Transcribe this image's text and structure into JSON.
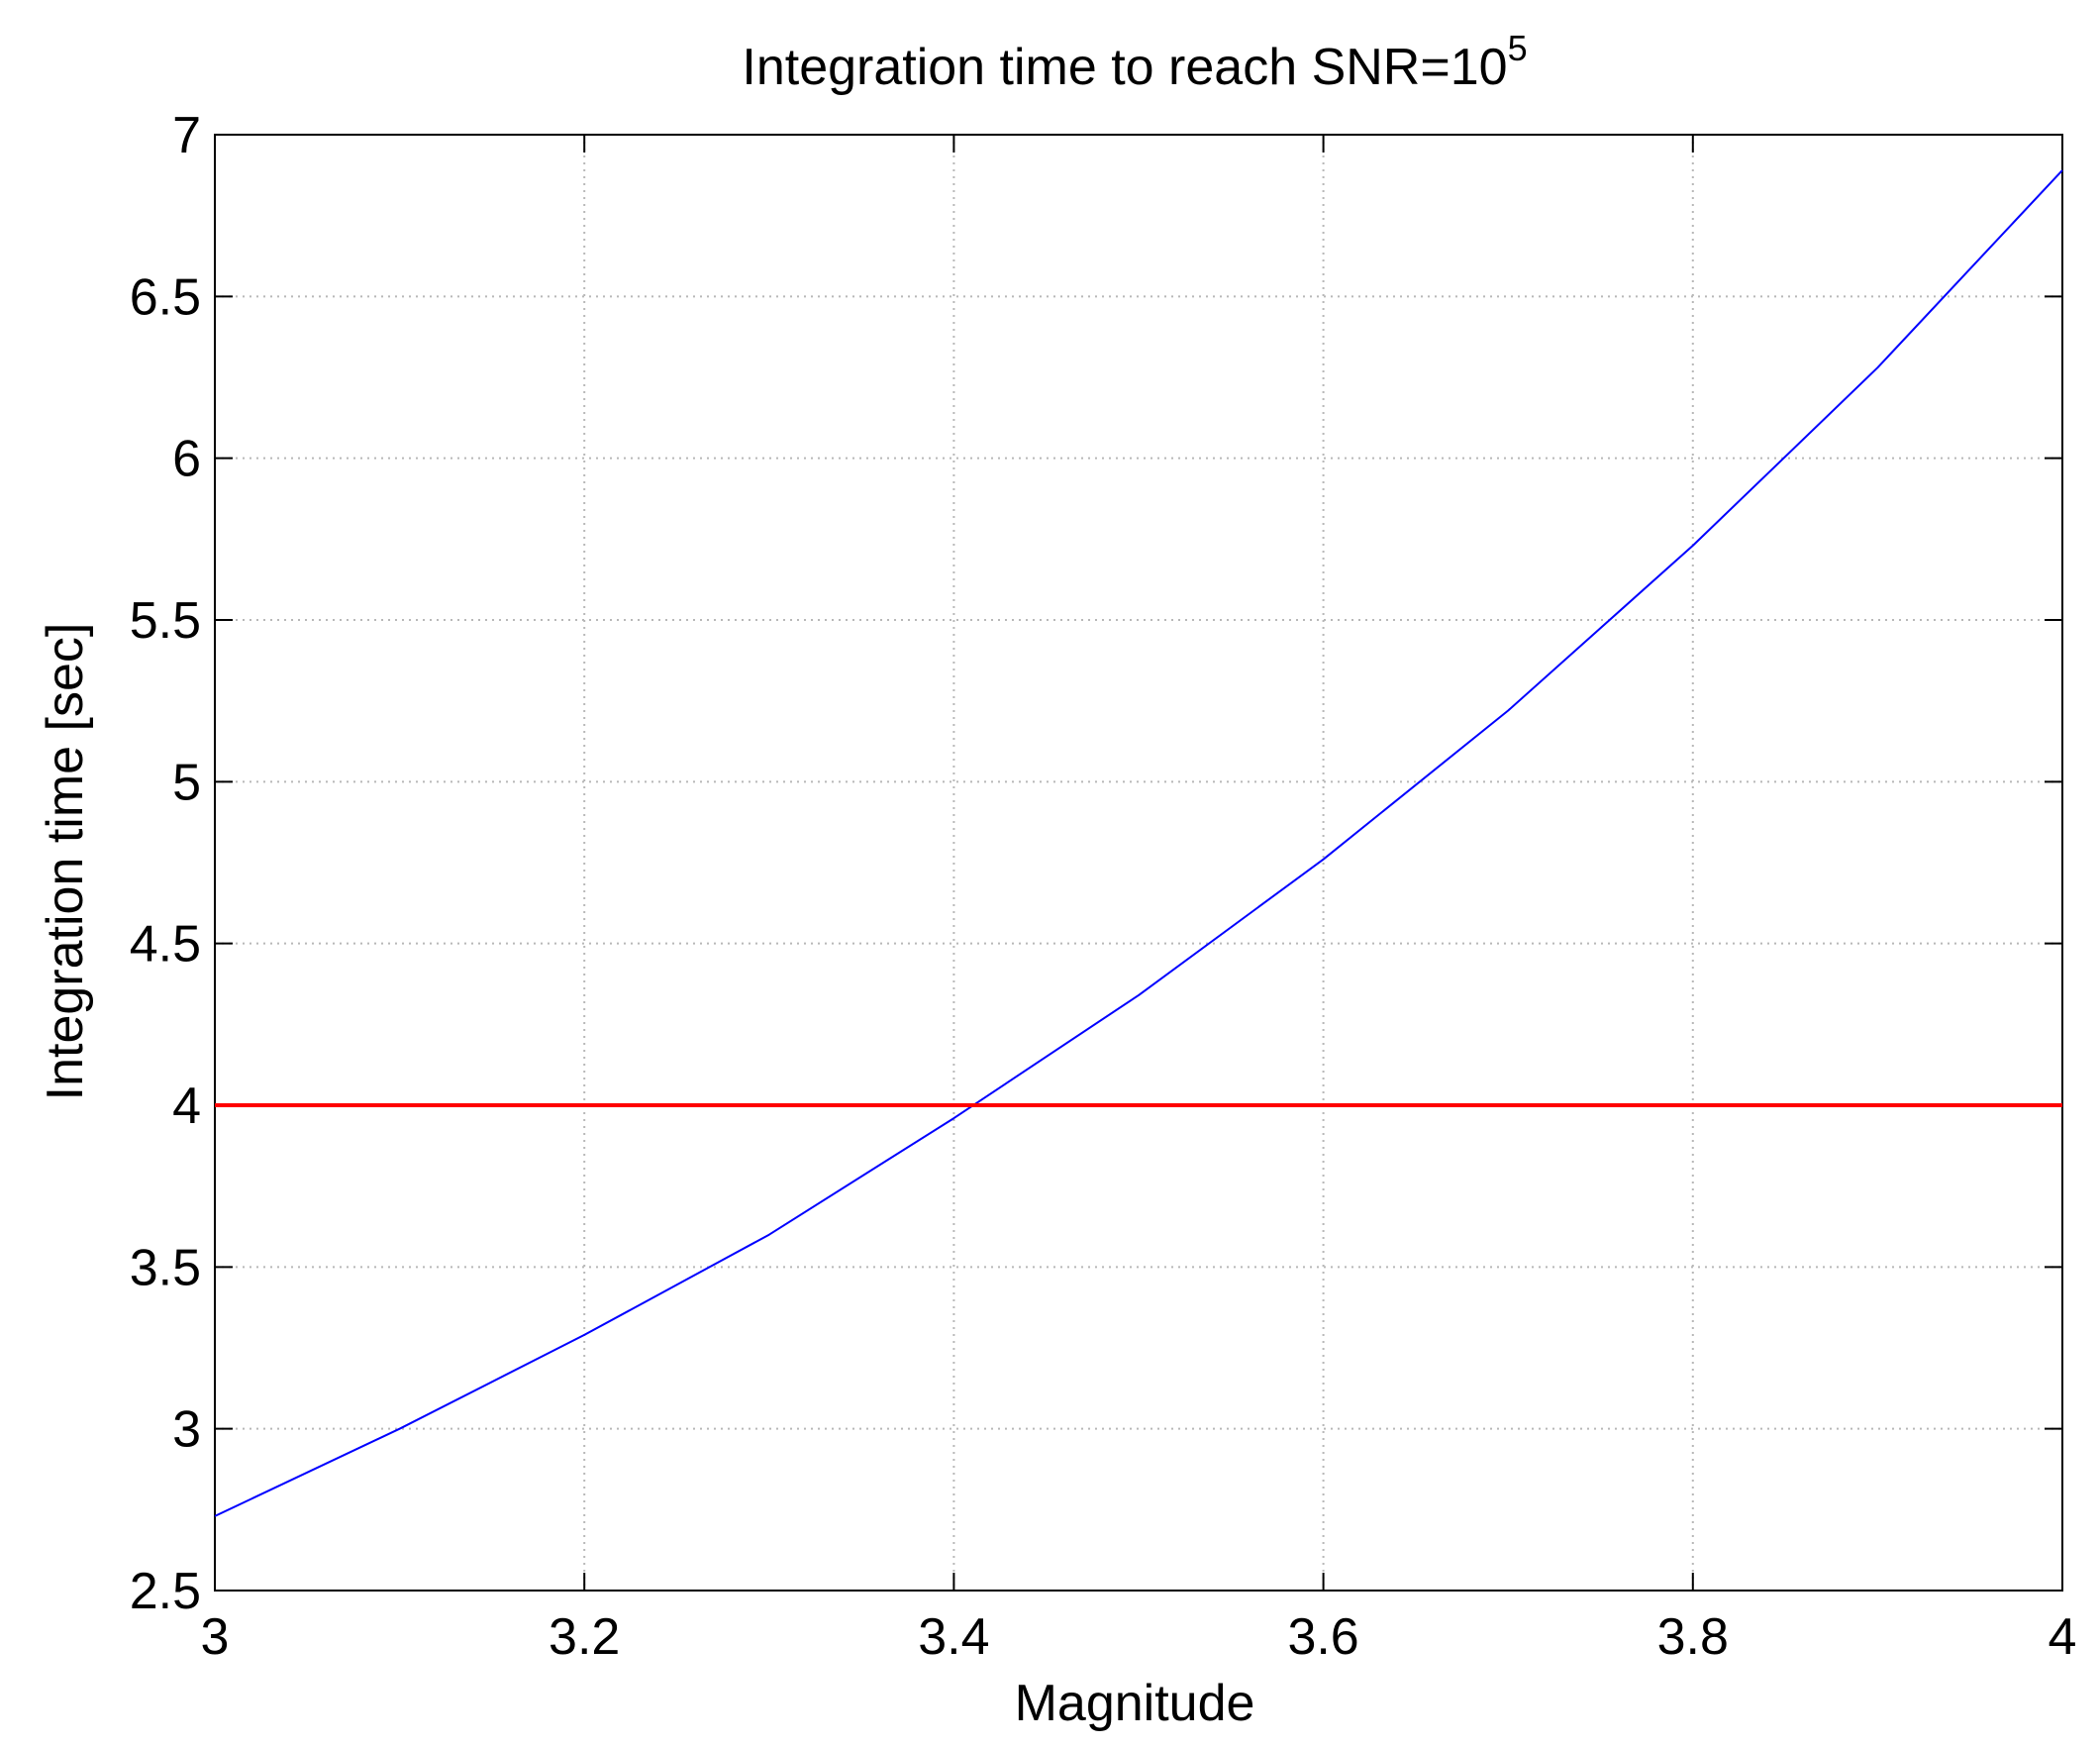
{
  "chart_data": {
    "type": "line",
    "title": "Integration time to reach SNR=10",
    "title_superscript": "5",
    "xlabel": "Magnitude",
    "ylabel": "Integration time [sec]",
    "xlim": [
      3,
      4
    ],
    "ylim": [
      2.5,
      7
    ],
    "grid": true,
    "x_ticks": [
      "3",
      "3.2",
      "3.4",
      "3.6",
      "3.8",
      "4"
    ],
    "y_ticks": [
      "2.5",
      "3",
      "3.5",
      "4",
      "4.5",
      "5",
      "5.5",
      "6",
      "6.5",
      "7"
    ],
    "series": [
      {
        "color": "#0000ff",
        "x": [
          3.0,
          3.1,
          3.2,
          3.3,
          3.4,
          3.5,
          3.6,
          3.7,
          3.8,
          3.9,
          4.0
        ],
        "y": [
          2.73,
          3.0,
          3.29,
          3.6,
          3.96,
          4.34,
          4.76,
          5.22,
          5.73,
          6.28,
          6.89
        ]
      },
      {
        "color": "#ff0000",
        "x": [
          3.0,
          4.0
        ],
        "y": [
          4.0,
          4.0
        ]
      }
    ]
  }
}
